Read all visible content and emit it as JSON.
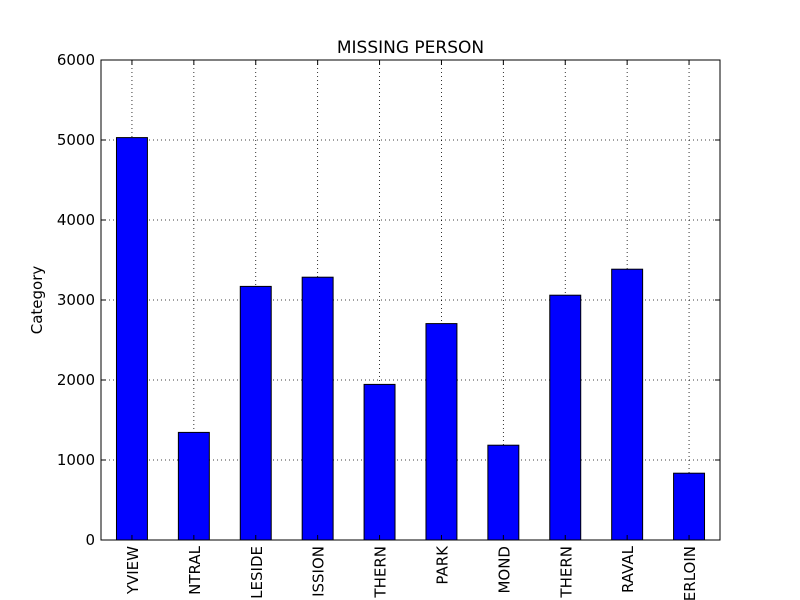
{
  "chart_data": {
    "type": "bar",
    "title": "MISSING PERSON",
    "xlabel": "",
    "ylabel": "Category",
    "categories": [
      "YVIEW",
      "NTRAL",
      "LESIDE",
      "ISSION",
      "THERN",
      "PARK",
      "MOND",
      "THERN",
      "RAVAL",
      "ERLOIN"
    ],
    "values": [
      5030,
      1345,
      3170,
      3285,
      1945,
      2705,
      1185,
      3060,
      3385,
      835
    ],
    "ylim": [
      0,
      6000
    ],
    "yticks": [
      0,
      1000,
      2000,
      3000,
      4000,
      5000,
      6000
    ],
    "grid": true,
    "bar_color": "#0000ff"
  }
}
